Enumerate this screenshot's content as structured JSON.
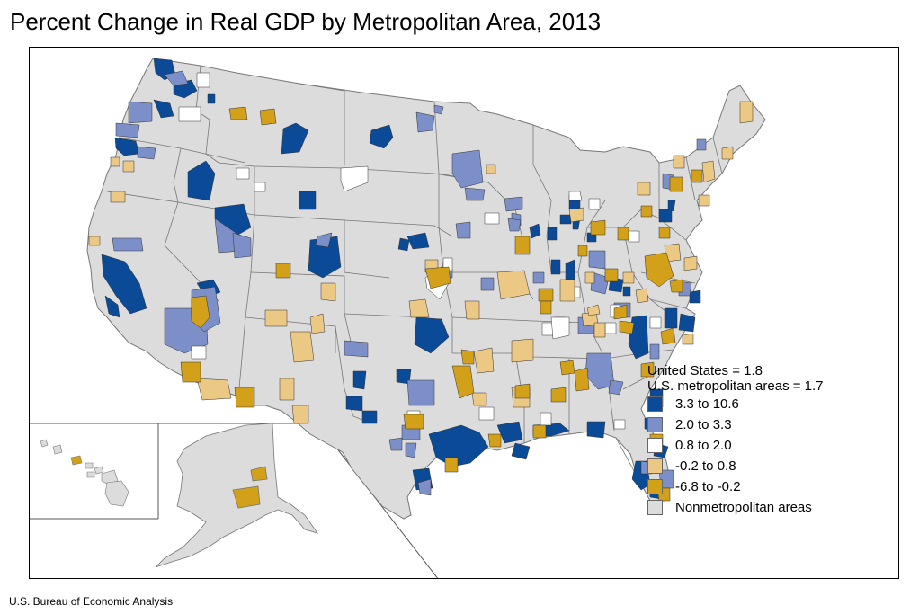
{
  "title": "Percent Change in Real GDP by Metropolitan Area, 2013",
  "source": "U.S. Bureau of Economic Analysis",
  "legend": {
    "summary": [
      {
        "label": "United States = 1.8"
      },
      {
        "label": "U.S. metropolitan areas = 1.7"
      }
    ],
    "classes": [
      {
        "label": "3.3 to 10.6",
        "color": "#0a4a96"
      },
      {
        "label": "2.0 to 3.3",
        "color": "#7c8fc8"
      },
      {
        "label": "0.8 to 2.0",
        "color": "#ffffff"
      },
      {
        "label": "-0.2 to 0.8",
        "color": "#ebc884"
      },
      {
        "label": "-6.8 to -0.2",
        "color": "#d3a01a"
      },
      {
        "label": "Nonmetropolitan areas",
        "color": "#dcdcdc"
      }
    ]
  },
  "map_colors": {
    "nonmetro": "#dcdcdc",
    "border": "#777777",
    "c1": "#0a4a96",
    "c2": "#7c8fc8",
    "c3": "#ffffff",
    "c4": "#ebc884",
    "c5": "#d3a01a"
  }
}
